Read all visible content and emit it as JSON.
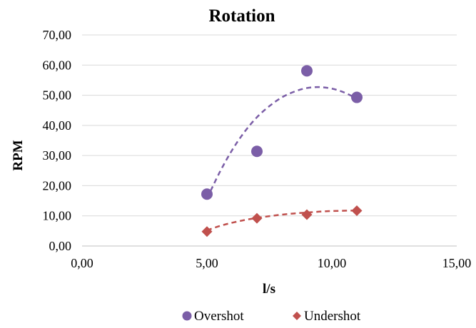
{
  "chart_data": {
    "type": "scatter",
    "title": "Rotation",
    "xlabel": "l/s",
    "ylabel": "RPM",
    "xlim": [
      0,
      15
    ],
    "ylim": [
      0,
      70
    ],
    "x_ticks": [
      "0,00",
      "5,00",
      "10,00",
      "15,00"
    ],
    "y_ticks": [
      "0,00",
      "10,00",
      "20,00",
      "30,00",
      "40,00",
      "50,00",
      "60,00",
      "70,00"
    ],
    "grid": "horizontal",
    "legend_position": "bottom",
    "trendline": "polynomial (dashed)",
    "series": [
      {
        "name": "Overshot",
        "marker": "circle",
        "color": "#7b5ea7",
        "x": [
          5,
          7,
          9,
          11
        ],
        "y": [
          17.2,
          31.4,
          58.1,
          49.3
        ],
        "trend_x": [
          5,
          5.5,
          6,
          6.5,
          7,
          7.5,
          8,
          8.5,
          9,
          9.5,
          10,
          10.5,
          11
        ],
        "trend_y": [
          15.7,
          24.3,
          31.7,
          37.8,
          42.7,
          46.4,
          49.3,
          51.2,
          52.4,
          52.7,
          52.2,
          50.9,
          48.9
        ]
      },
      {
        "name": "Undershot",
        "marker": "diamond",
        "color": "#c0504d",
        "x": [
          5,
          7,
          9,
          11
        ],
        "y": [
          4.8,
          9.2,
          10.4,
          11.7
        ],
        "trend_x": [
          5,
          5.5,
          6,
          6.5,
          7,
          7.5,
          8,
          8.5,
          9,
          9.5,
          10,
          10.5,
          11
        ],
        "trend_y": [
          5.2,
          6.6,
          7.7,
          8.6,
          9.3,
          9.9,
          10.4,
          10.8,
          11.1,
          11.4,
          11.6,
          11.7,
          11.8
        ]
      }
    ]
  }
}
